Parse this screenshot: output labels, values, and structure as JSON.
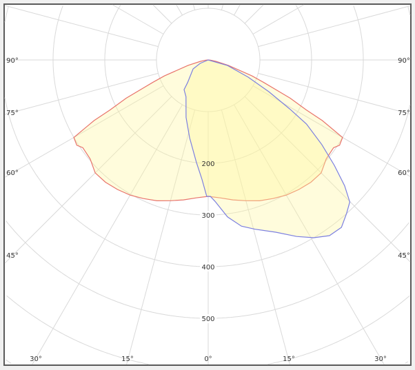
{
  "chart_data": {
    "type": "polar",
    "title": "",
    "radial_unit_ticks": [
      "200",
      "300",
      "400",
      "500"
    ],
    "radial_grid_step": 100,
    "angular_grid_step_deg": 15,
    "angle_labels_left": [
      "90°",
      "75°",
      "60°",
      "45°",
      "30°",
      "15°"
    ],
    "angle_labels_right": [
      "90°",
      "75°",
      "60°",
      "45°",
      "30°",
      "15°"
    ],
    "angle_label_bottom": "0°",
    "grid": true,
    "colors": {
      "series_a": "#e8736b",
      "series_b": "#7b7fe0",
      "fill": "#fff59a",
      "grid": "#d9d9d9"
    },
    "series": [
      {
        "angles_deg": [
          -90,
          -85,
          -80,
          -75,
          -70,
          -68,
          -65,
          -63,
          -62,
          -60,
          -57,
          -55,
          -50,
          -45,
          -40,
          -35,
          -30,
          -25,
          -20,
          -15,
          -10,
          -5,
          0,
          5,
          10,
          15,
          20,
          25,
          30,
          35,
          40,
          45,
          50,
          55,
          57,
          60,
          62,
          63,
          65,
          68,
          70,
          75,
          80,
          85,
          90
        ],
        "values": [
          0,
          5,
          15,
          40,
          90,
          115,
          175,
          213,
          250,
          300,
          303,
          296,
          298,
          309,
          309,
          306,
          302,
          296,
          290,
          282,
          275,
          268,
          264,
          268,
          275,
          282,
          290,
          296,
          302,
          306,
          309,
          309,
          298,
          296,
          303,
          300,
          250,
          213,
          175,
          115,
          90,
          40,
          15,
          5,
          0
        ]
      },
      {
        "angles_deg": [
          -90,
          -67,
          -59.4,
          -42.3,
          -39.1,
          -31.1,
          -21.1,
          -13.4,
          -6.6,
          -3,
          -0.6,
          0.9,
          2.8,
          7,
          11.3,
          15.5,
          21.4,
          26.6,
          30.7,
          34.6,
          38.5,
          42,
          44.9,
          47.3,
          50.1,
          53.3,
          56.9,
          59,
          62.4,
          66.7,
          74,
          90
        ],
        "values": [
          0,
          17,
          34,
          59,
          74,
          83,
          119,
          155,
          199,
          231,
          264,
          264,
          274,
          306,
          328,
          340,
          358,
          382,
          400,
          413,
          414,
          400,
          388,
          359,
          318,
          274,
          227,
          184,
          132,
          84,
          39,
          0
        ]
      }
    ]
  }
}
